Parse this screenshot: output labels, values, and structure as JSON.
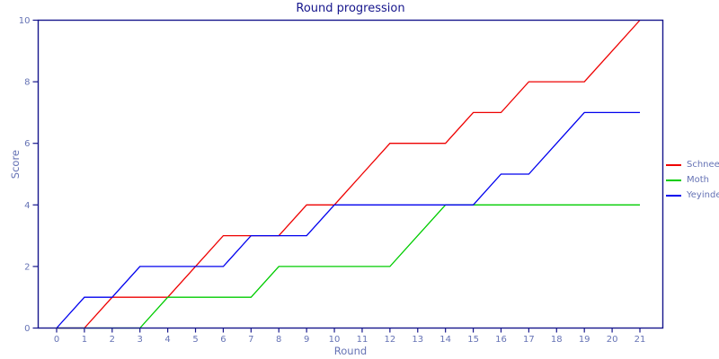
{
  "title": "Round progression",
  "chart_data": {
    "type": "line",
    "title": "Round progression",
    "xlabel": "Round",
    "ylabel": "Score",
    "x": [
      0,
      1,
      2,
      3,
      4,
      5,
      6,
      7,
      8,
      9,
      10,
      11,
      12,
      13,
      14,
      15,
      16,
      17,
      18,
      19,
      20,
      21
    ],
    "series": [
      {
        "name": "Schnee",
        "color": "#ee0000",
        "values": [
          0,
          0,
          1,
          1,
          1,
          2,
          3,
          3,
          3,
          4,
          4,
          5,
          6,
          6,
          6,
          7,
          7,
          8,
          8,
          8,
          9,
          10
        ]
      },
      {
        "name": "Moth",
        "color": "#00cc00",
        "values": [
          0,
          0,
          0,
          0,
          1,
          1,
          1,
          1,
          2,
          2,
          2,
          2,
          2,
          3,
          4,
          4,
          4,
          4,
          4,
          4,
          4,
          4
        ]
      },
      {
        "name": "Yeyinde",
        "color": "#0000ee",
        "values": [
          0,
          1,
          1,
          2,
          2,
          2,
          2,
          3,
          3,
          3,
          4,
          4,
          4,
          4,
          4,
          4,
          5,
          5,
          6,
          7,
          7,
          7
        ]
      }
    ],
    "xlim": [
      0,
      21
    ],
    "ylim": [
      0,
      10
    ],
    "xticks": [
      0,
      1,
      2,
      3,
      4,
      5,
      6,
      7,
      8,
      9,
      10,
      11,
      12,
      13,
      14,
      15,
      16,
      17,
      18,
      19,
      20,
      21
    ],
    "yticks": [
      0,
      2,
      4,
      6,
      8,
      10
    ],
    "grid": false,
    "legend_position": "right-outside",
    "axis_color": "#16168c",
    "tick_label_color": "#6673b5"
  }
}
